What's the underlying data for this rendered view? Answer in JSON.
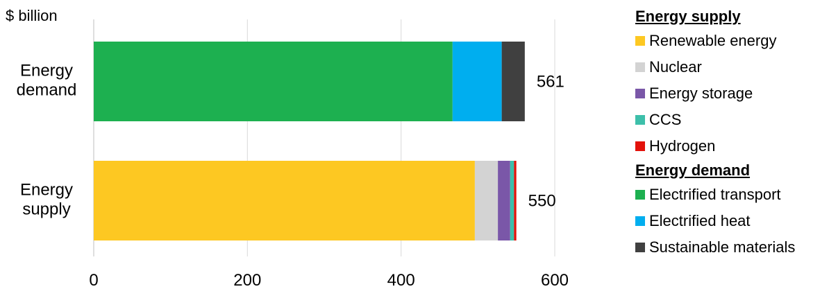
{
  "chart_data": {
    "type": "bar",
    "orientation": "horizontal",
    "stacked": true,
    "ylabel": "$ billion",
    "categories": [
      "Energy demand",
      "Energy supply"
    ],
    "category_labels": [
      [
        "Energy",
        "demand"
      ],
      [
        "Energy",
        "supply"
      ]
    ],
    "totals": [
      561,
      550
    ],
    "total_labels": [
      "561",
      "550"
    ],
    "xlim": [
      0,
      600
    ],
    "x_ticks": [
      0,
      200,
      400,
      600
    ],
    "x_tick_labels": [
      "0",
      "200",
      "400",
      "600"
    ],
    "grid": "vertical",
    "legend_placement": "right",
    "series": [
      {
        "name": "Renewable energy",
        "group": "Energy supply",
        "color": "#FDC822",
        "values": [
          0,
          496
        ]
      },
      {
        "name": "Nuclear",
        "group": "Energy supply",
        "color": "#D3D3D3",
        "values": [
          0,
          30
        ]
      },
      {
        "name": "Energy storage",
        "group": "Energy supply",
        "color": "#7A57A8",
        "values": [
          0,
          16
        ]
      },
      {
        "name": "CCS",
        "group": "Energy supply",
        "color": "#3DBFAA",
        "values": [
          0,
          5
        ]
      },
      {
        "name": "Hydrogen",
        "group": "Energy supply",
        "color": "#E3120B",
        "values": [
          0,
          3
        ]
      },
      {
        "name": "Electrified transport",
        "group": "Energy demand",
        "color": "#1DB050",
        "values": [
          467,
          0
        ]
      },
      {
        "name": "Electrified heat",
        "group": "Energy demand",
        "color": "#00AEEF",
        "values": [
          64,
          0
        ]
      },
      {
        "name": "Sustainable materials",
        "group": "Energy demand",
        "color": "#404040",
        "values": [
          30,
          0
        ]
      }
    ]
  },
  "legend": {
    "groups": [
      {
        "title": "Energy supply",
        "items": [
          {
            "label": "Renewable energy",
            "color": "#FDC822"
          },
          {
            "label": "Nuclear",
            "color": "#D3D3D3"
          },
          {
            "label": "Energy storage",
            "color": "#7A57A8"
          },
          {
            "label": "CCS",
            "color": "#3DBFAA"
          },
          {
            "label": "Hydrogen",
            "color": "#E3120B"
          }
        ]
      },
      {
        "title": "Energy demand",
        "items": [
          {
            "label": "Electrified transport",
            "color": "#1DB050"
          },
          {
            "label": "Electrified heat",
            "color": "#00AEEF"
          },
          {
            "label": "Sustainable materials",
            "color": "#404040"
          }
        ]
      }
    ]
  }
}
